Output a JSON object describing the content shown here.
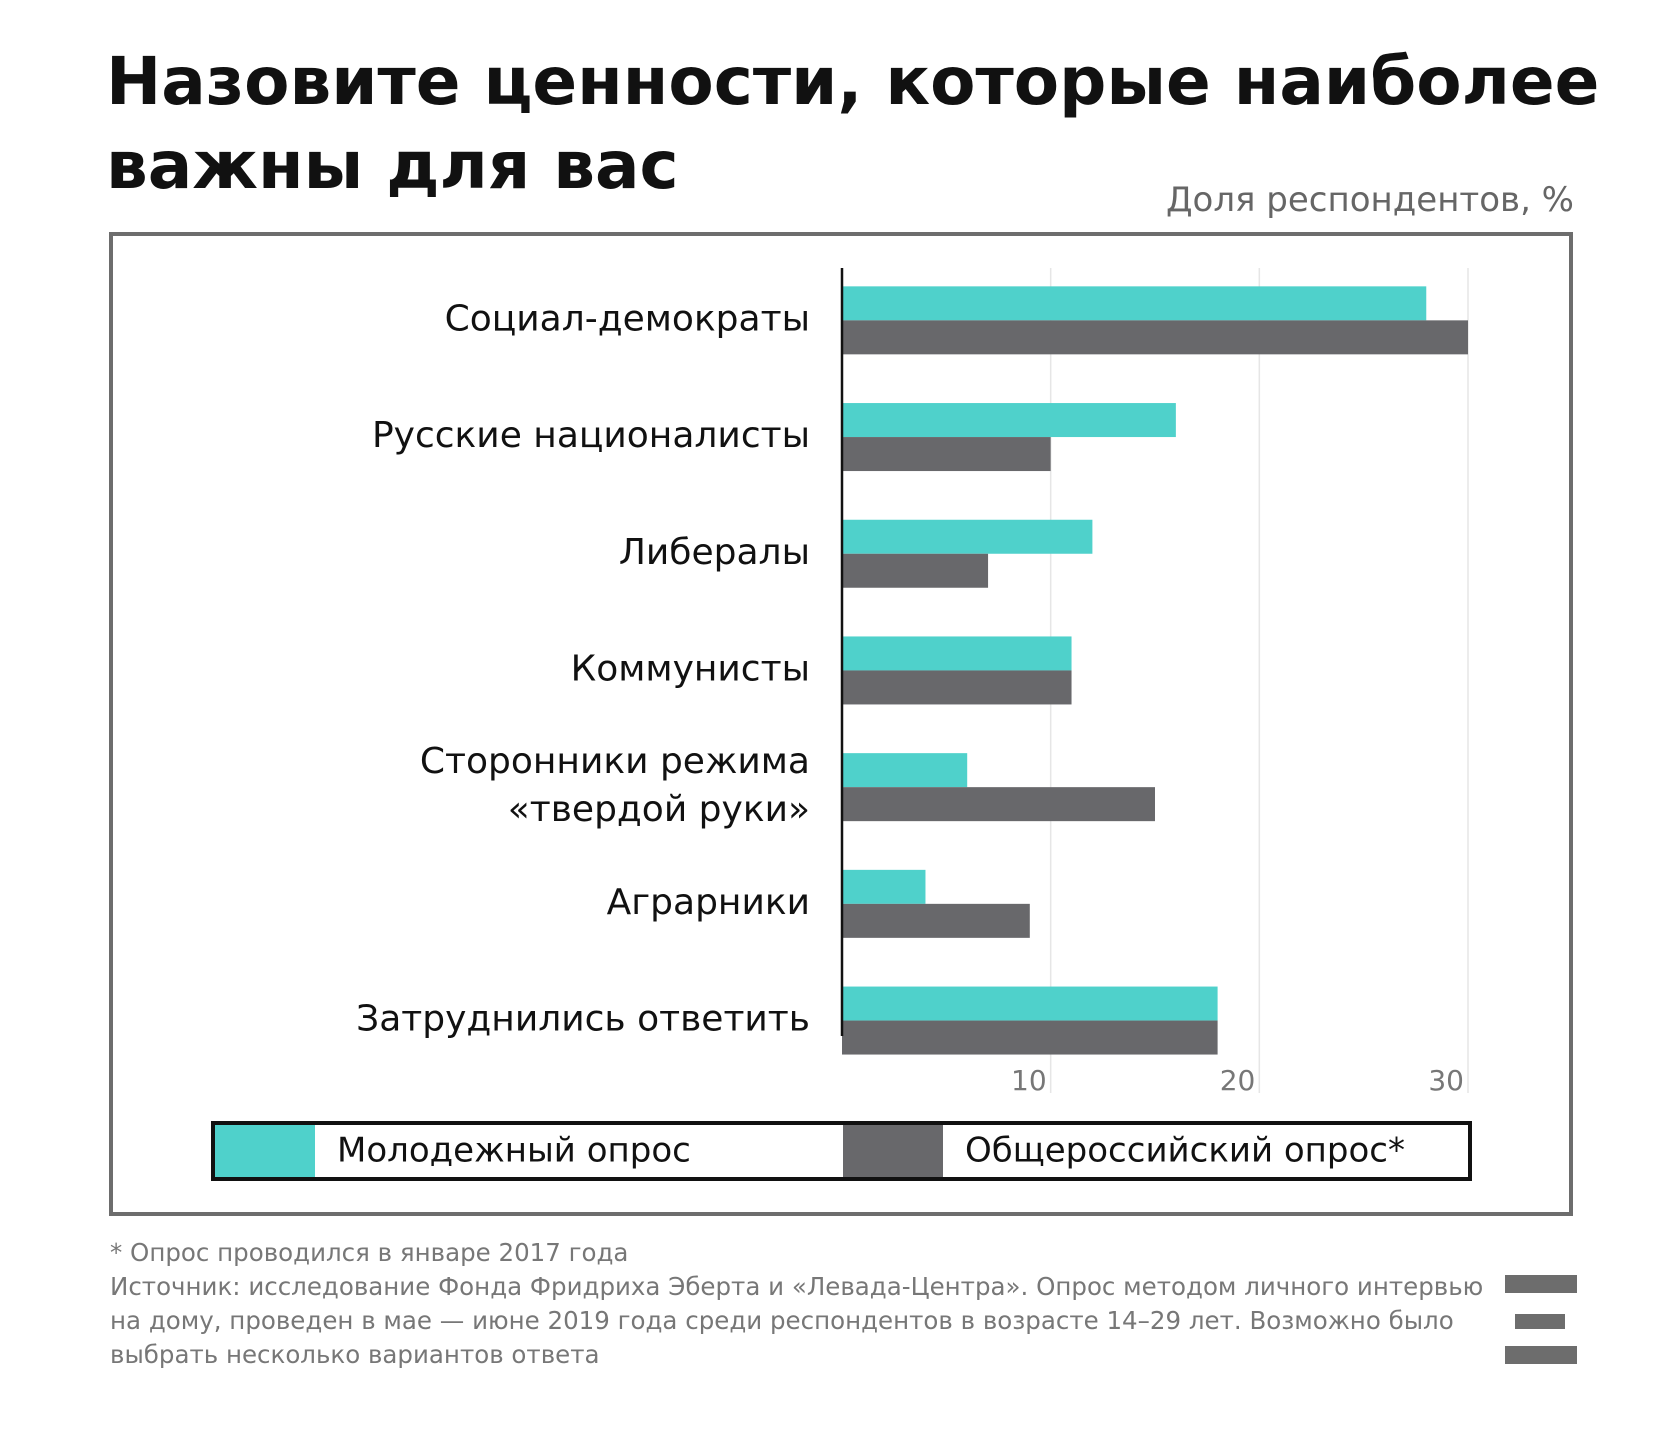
{
  "chart_data": {
    "type": "bar",
    "orientation": "horizontal",
    "title": "Назовите ценности, которые наиболее важны для вас",
    "subtitle": "Доля респондентов, %",
    "categories": [
      "Социал-демократы",
      "Русские националисты",
      "Либералы",
      "Коммунисты",
      "Сторонники режима\n«твердой руки»",
      "Аграрники",
      "Затруднились ответить"
    ],
    "series": [
      {
        "name": "Молодежный опрос",
        "color": "#4fd1cb",
        "values": [
          28,
          16,
          12,
          11,
          6,
          4,
          18
        ]
      },
      {
        "name": "Общероссийский опрос*",
        "color": "#68686b",
        "values": [
          30,
          10,
          7,
          11,
          15,
          9,
          18
        ]
      }
    ],
    "xlim": [
      0,
      30
    ],
    "xticks": [
      10,
      20,
      30
    ],
    "grid": true,
    "legend": "bottom",
    "footnotes": [
      "* Опрос проводился в январе 2017 года",
      "Источник: исследование Фонда Фридриха Эберта и «Левада-Центра». Опрос методом личного интервью на дому, проведен в мае — июне 2019 года среди респондентов в возрасте 14–29 лет. Возможно было выбрать несколько вариантов ответа"
    ]
  }
}
